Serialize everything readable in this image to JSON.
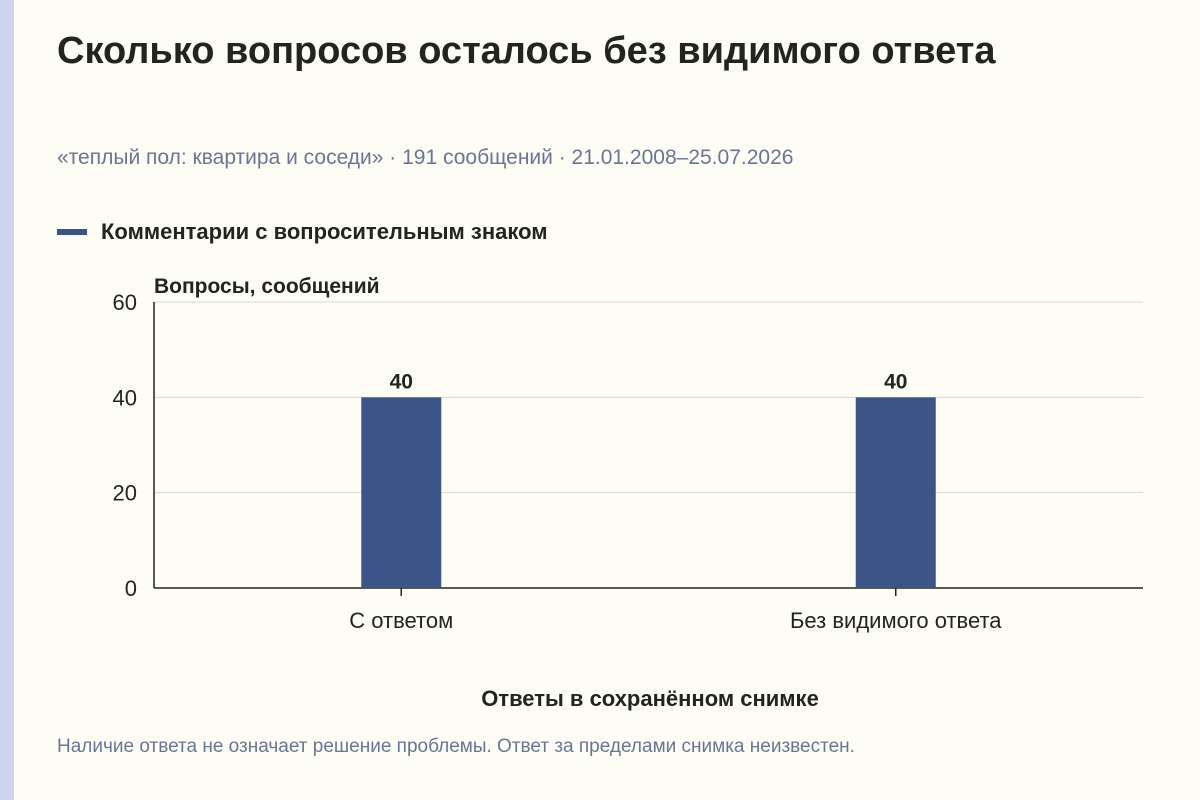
{
  "title": "Сколько вопросов осталось без видимого ответа",
  "subtitle": "«теплый пол: квартира и соседи» · 191 сообщений · 21.01.2008–25.07.2026",
  "footnote": "Наличие ответа не означает решение проблемы. Ответ за пределами снимка неизвестен.",
  "colors": {
    "bar": "#3d5488",
    "accent": "#cdd2ee"
  },
  "chart_data": {
    "type": "bar",
    "categories": [
      "С ответом",
      "Без видимого ответа"
    ],
    "series": [
      {
        "name": "Комментарии с вопросительным знаком",
        "values": [
          40,
          40
        ]
      }
    ],
    "xlabel": "Ответы в сохранённом снимке",
    "ylabel": "Вопросы, сообщений",
    "ylim": [
      0,
      60
    ],
    "yticks": [
      0,
      20,
      40,
      60
    ],
    "grid": true,
    "legend_position": "top-left"
  }
}
